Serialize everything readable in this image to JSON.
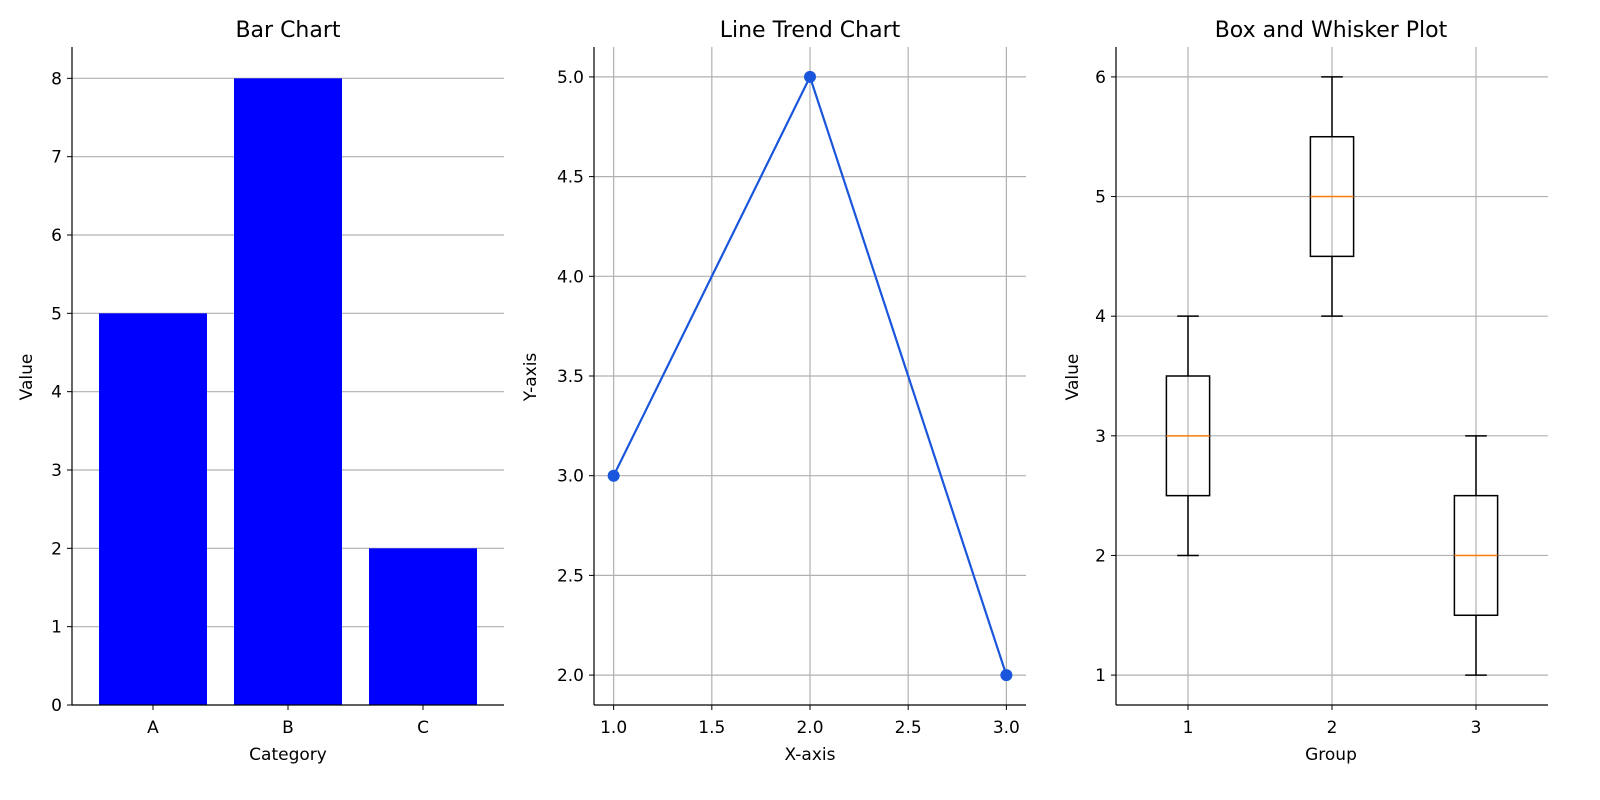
{
  "chart_data": [
    {
      "type": "bar",
      "title": "Bar Chart",
      "xlabel": "Category",
      "ylabel": "Value",
      "categories": [
        "A",
        "B",
        "C"
      ],
      "values": [
        5,
        8,
        2
      ],
      "ylim": [
        0,
        8.4
      ],
      "yticks": [
        0,
        1,
        2,
        3,
        4,
        5,
        6,
        7,
        8
      ],
      "ytick_labels": [
        "0",
        "1",
        "2",
        "3",
        "4",
        "5",
        "6",
        "7",
        "8"
      ],
      "grid": "y",
      "color": "#0000ff"
    },
    {
      "type": "line",
      "title": "Line Trend Chart",
      "xlabel": "X-axis",
      "ylabel": "Y-axis",
      "x": [
        1.0,
        2.0,
        3.0
      ],
      "values": [
        3.0,
        5.0,
        2.0
      ],
      "xlim": [
        0.9,
        3.1
      ],
      "ylim": [
        1.85,
        5.15
      ],
      "xticks": [
        1.0,
        1.5,
        2.0,
        2.5,
        3.0
      ],
      "xtick_labels": [
        "1.0",
        "1.5",
        "2.0",
        "2.5",
        "3.0"
      ],
      "yticks": [
        2.0,
        2.5,
        3.0,
        3.5,
        4.0,
        4.5,
        5.0
      ],
      "ytick_labels": [
        "2.0",
        "2.5",
        "3.0",
        "3.5",
        "4.0",
        "4.5",
        "5.0"
      ],
      "grid": "both",
      "color": "#1a56db",
      "marker": "circle"
    },
    {
      "type": "box",
      "title": "Box and Whisker Plot",
      "xlabel": "Group",
      "ylabel": "Value",
      "categories": [
        "1",
        "2",
        "3"
      ],
      "boxes": [
        {
          "min": 2,
          "q1": 2.5,
          "median": 3,
          "q3": 3.5,
          "max": 4
        },
        {
          "min": 4,
          "q1": 4.5,
          "median": 5,
          "q3": 5.5,
          "max": 6
        },
        {
          "min": 1,
          "q1": 1.5,
          "median": 2,
          "q3": 2.5,
          "max": 3
        }
      ],
      "ylim": [
        0.75,
        6.25
      ],
      "yticks": [
        1,
        2,
        3,
        4,
        5,
        6
      ],
      "ytick_labels": [
        "1",
        "2",
        "3",
        "4",
        "5",
        "6"
      ],
      "grid": "both",
      "box_color": "#000000",
      "median_color": "#ff7f0e"
    }
  ]
}
